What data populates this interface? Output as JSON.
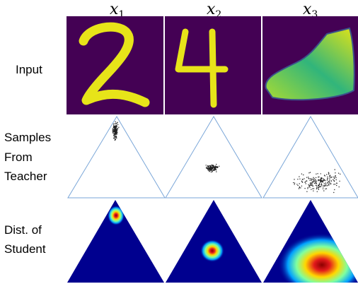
{
  "columns": [
    {
      "symbol": "x",
      "subscript": "1"
    },
    {
      "symbol": "x",
      "subscript": "2"
    },
    {
      "symbol": "x",
      "subscript": "3"
    }
  ],
  "rows": [
    {
      "label": [
        "Input"
      ]
    },
    {
      "label": [
        "Samples",
        "From",
        "Teacher"
      ]
    },
    {
      "label": [
        "Dist. of",
        "Student"
      ]
    }
  ]
}
